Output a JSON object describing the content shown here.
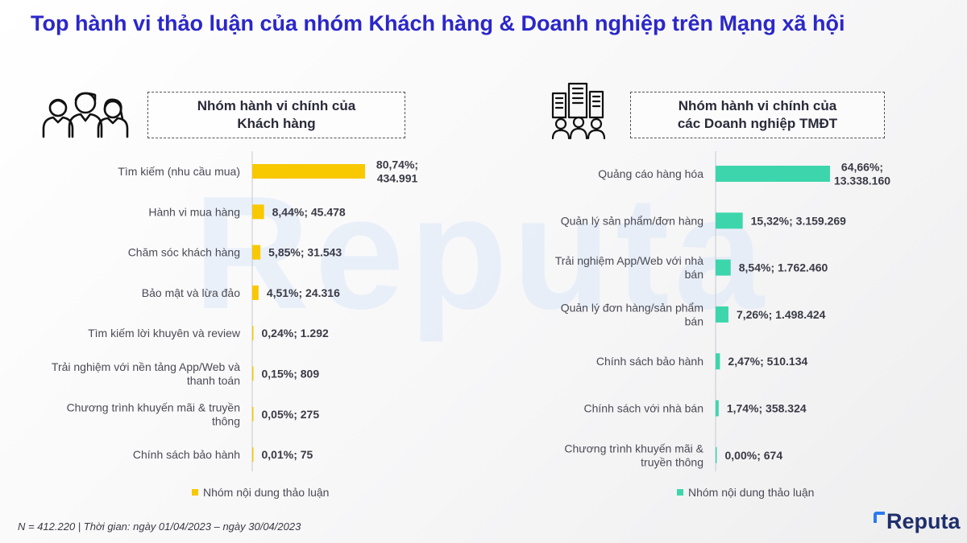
{
  "page": {
    "title": "Top hành vi thảo luận của nhóm Khách hàng & Doanh nghiệp trên Mạng xã hội",
    "watermark": "Reputa",
    "footer": "N = 412.220 | Thời gian: ngày 01/04/2023 – ngày 30/04/2023",
    "brand": "Reputa"
  },
  "colors": {
    "title": "#2b27c9",
    "customers_bar": "#f8c800",
    "businesses_bar": "#3dd6ac",
    "axis": "#c8c8d0"
  },
  "icons": {
    "customers": "people-group-icon",
    "businesses": "buildings-people-icon"
  },
  "chart_data": [
    {
      "type": "bar",
      "orientation": "horizontal",
      "title": "Nhóm hành vi chính của Khách hàng",
      "title_lines": [
        "Nhóm hành vi chính của",
        "Khách hàng"
      ],
      "categories": [
        "Tìm kiếm (nhu cầu mua)",
        "Hành vi mua hàng",
        "Chăm sóc khách hàng",
        "Bảo mật và lừa đảo",
        "Tìm kiếm lời khuyên và review",
        "Trải nghiệm với nền tảng App/Web và thanh toán",
        "Chương trình khuyến mãi & truyền thông",
        "Chính sách bảo hành"
      ],
      "category_lines": [
        [
          "Tìm kiếm (nhu cầu mua)"
        ],
        [
          "Hành vi mua hàng"
        ],
        [
          "Chăm sóc khách hàng"
        ],
        [
          "Bảo mật và lừa đảo"
        ],
        [
          "Tìm kiếm lời khuyên và review"
        ],
        [
          "Trải nghiệm với nền tảng App/Web và",
          "thanh toán"
        ],
        [
          "Chương trình khuyến mãi & truyền",
          "thông"
        ],
        [
          "Chính sách bảo hành"
        ]
      ],
      "series": [
        {
          "name": "Nhóm nội dung thảo luận",
          "values": [
            80.74,
            8.44,
            5.85,
            4.51,
            0.24,
            0.15,
            0.05,
            0.01
          ],
          "counts": [
            434991,
            45478,
            31543,
            24316,
            1292,
            809,
            275,
            75
          ],
          "labels": [
            [
              "80,74%;",
              "434.991"
            ],
            [
              "8,44%;  45.478"
            ],
            [
              "5,85%;  31.543"
            ],
            [
              "4,51%;  24.316"
            ],
            [
              "0,24%;  1.292"
            ],
            [
              "0,15%;  809"
            ],
            [
              "0,05%;  275"
            ],
            [
              "0,01%;  75"
            ]
          ]
        }
      ],
      "legend": "bottom",
      "grid": false
    },
    {
      "type": "bar",
      "orientation": "horizontal",
      "title": "Nhóm hành vi chính của các Doanh nghiệp TMĐT",
      "title_lines": [
        "Nhóm hành vi chính của",
        "các Doanh nghiệp TMĐT"
      ],
      "categories": [
        "Quảng cáo hàng hóa",
        "Quản lý sản phẩm/đơn hàng",
        "Trải nghiệm App/Web với nhà bán",
        "Quản lý đơn hàng/sản phẩm bán",
        "Chính sách bảo hành",
        "Chính sách với nhà bán",
        "Chương trình khuyến mãi & truyền thông"
      ],
      "category_lines": [
        [
          "Quảng cáo hàng hóa"
        ],
        [
          "Quản lý sản phẩm/đơn hàng"
        ],
        [
          "Trải nghiệm App/Web với nhà",
          "bán"
        ],
        [
          "Quản lý đơn hàng/sản phẩm",
          "bán"
        ],
        [
          "Chính sách bảo hành"
        ],
        [
          "Chính sách với nhà bán"
        ],
        [
          "Chương trình khuyến mãi &",
          "truyền thông"
        ]
      ],
      "series": [
        {
          "name": "Nhóm nội dung thảo luận",
          "values": [
            64.66,
            15.32,
            8.54,
            7.26,
            2.47,
            1.74,
            0.0
          ],
          "counts": [
            13338160,
            3159269,
            1762460,
            1498424,
            510134,
            358324,
            674
          ],
          "labels": [
            [
              "64,66%;",
              "13.338.160"
            ],
            [
              "15,32%;  3.159.269"
            ],
            [
              "8,54%;  1.762.460"
            ],
            [
              "7,26%;  1.498.424"
            ],
            [
              "2,47%;  510.134"
            ],
            [
              "1,74%;  358.324"
            ],
            [
              "0,00%;  674"
            ]
          ]
        }
      ],
      "legend": "bottom",
      "grid": false
    }
  ]
}
